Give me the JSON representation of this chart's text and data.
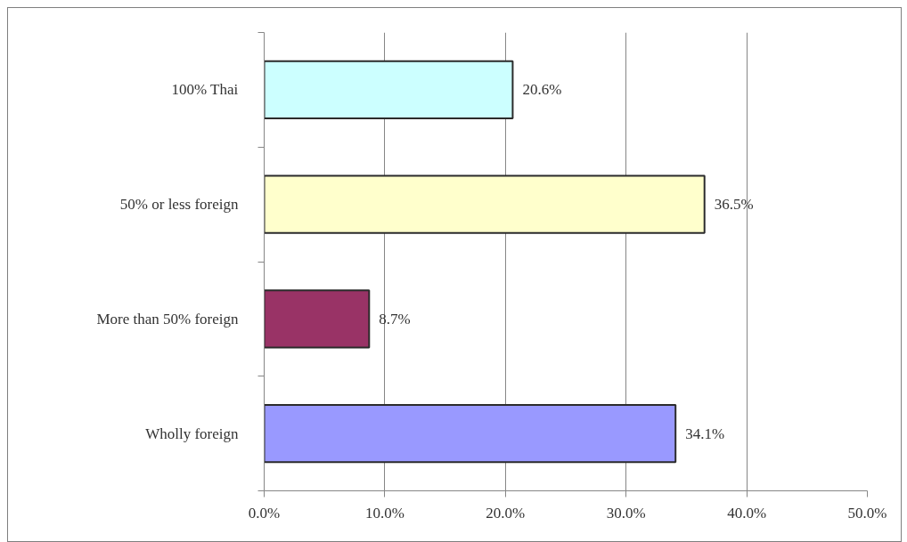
{
  "chart_data": {
    "type": "bar",
    "orientation": "horizontal",
    "categories": [
      "100% Thai",
      "50% or less foreign",
      "More than 50% foreign",
      "Wholly foreign"
    ],
    "values": [
      20.6,
      36.5,
      8.7,
      34.1
    ],
    "colors": [
      "#ccffff",
      "#ffffcc",
      "#993366",
      "#9999ff"
    ],
    "value_labels": [
      "20.6%",
      "36.5%",
      "8.7%",
      "34.1%"
    ],
    "xlim": [
      0,
      50
    ],
    "xticks": [
      {
        "value": 0,
        "label": "0.0%"
      },
      {
        "value": 10,
        "label": "10.0%"
      },
      {
        "value": 20,
        "label": "20.0%"
      },
      {
        "value": 30,
        "label": "30.0%"
      },
      {
        "value": 40,
        "label": "40.0%"
      },
      {
        "value": 50,
        "label": "50.0%"
      }
    ],
    "grid": "x"
  }
}
